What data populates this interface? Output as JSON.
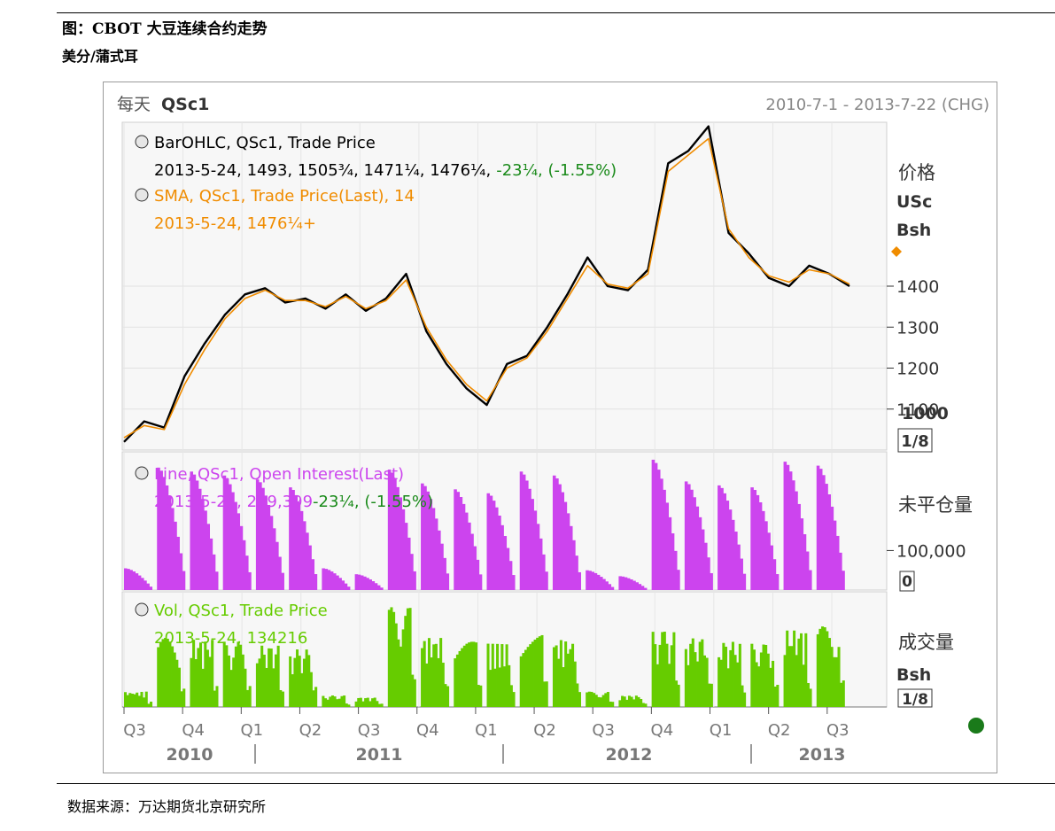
{
  "document": {
    "title": "图：CBOT 大豆连续合约走势",
    "unit": "美分/蒲式耳",
    "source": "数据来源：万达期货北京研究所"
  },
  "chart_data": {
    "type": "line",
    "header": {
      "period": "每天",
      "symbol": "QSc1",
      "date_range": "2010-7-1 - 2013-7-22 (CHG)"
    },
    "x_quarters": [
      "Q3",
      "Q4",
      "Q1",
      "Q2",
      "Q3",
      "Q4",
      "Q1",
      "Q2",
      "Q3",
      "Q4",
      "Q1",
      "Q2",
      "Q3"
    ],
    "x_years": [
      "2010",
      "2011",
      "2012",
      "2013"
    ],
    "status_dot_color": "#1a7a1a",
    "panels": [
      {
        "name": "price",
        "legend": [
          {
            "label": "BarOHLC, QSc1, Trade Price",
            "values": "2013-5-24, 1493, 1505³⁄₄, 1471¹⁄₄, 1476¹⁄₄,",
            "change": "-23¹⁄₄, (-1.55%)",
            "color": "#000000",
            "change_color": "#1a8a1a"
          },
          {
            "label": "SMA, QSc1, Trade Price(Last),  14",
            "values": "2013-5-24, 1476¹⁄₄+",
            "color": "#f08c00"
          }
        ],
        "axis_title": [
          "价格",
          "USc",
          "Bsh"
        ],
        "y_ticks": [
          "1400",
          "1300",
          "1200",
          "1100"
        ],
        "y_bottom_label": "1000",
        "scale_box": "1/8",
        "ylim": [
          1000,
          1800
        ],
        "marker_color": "#f08c00",
        "series": [
          {
            "name": "QSc1",
            "color": "#000000",
            "x": [
              0,
              1,
              2,
              3,
              4,
              5,
              6,
              7,
              8,
              9,
              10,
              11,
              12,
              13,
              14,
              15,
              16,
              17,
              18,
              19,
              20,
              21,
              22,
              23,
              24,
              25,
              26,
              27,
              28,
              29,
              30,
              31,
              32,
              33,
              34,
              35,
              36
            ],
            "values": [
              1020,
              1070,
              1055,
              1180,
              1260,
              1330,
              1380,
              1395,
              1360,
              1370,
              1345,
              1380,
              1340,
              1370,
              1430,
              1290,
              1210,
              1150,
              1110,
              1210,
              1230,
              1300,
              1380,
              1470,
              1400,
              1390,
              1440,
              1700,
              1730,
              1790,
              1530,
              1480,
              1420,
              1400,
              1450,
              1430,
              1400
            ]
          },
          {
            "name": "SMA 14",
            "color": "#f08c00",
            "x": [
              0,
              1,
              2,
              3,
              4,
              5,
              6,
              7,
              8,
              9,
              10,
              11,
              12,
              13,
              14,
              15,
              16,
              17,
              18,
              19,
              20,
              21,
              22,
              23,
              24,
              25,
              26,
              27,
              28,
              29,
              30,
              31,
              32,
              33,
              34,
              35,
              36
            ],
            "values": [
              1030,
              1060,
              1050,
              1160,
              1245,
              1320,
              1370,
              1390,
              1365,
              1365,
              1350,
              1375,
              1345,
              1365,
              1415,
              1300,
              1220,
              1160,
              1120,
              1200,
              1225,
              1290,
              1370,
              1450,
              1405,
              1395,
              1430,
              1680,
              1720,
              1760,
              1540,
              1470,
              1425,
              1410,
              1440,
              1430,
              1405
            ]
          }
        ]
      },
      {
        "name": "open-interest",
        "legend": [
          {
            "label": "Line, QSc1, Open Interest(Last)",
            "values": "2013-5-24, 299,399",
            "change": "-23¹⁄₄, (-1.55%)",
            "color": "#cc44ee",
            "change_color": "#1a8a1a"
          }
        ],
        "axis_title": [
          "未平仓量"
        ],
        "y_ticks": [
          "100,000"
        ],
        "scale_box": "0",
        "ylim": [
          0,
          350000
        ],
        "fill_color": "#cc44ee",
        "contract_peaks": [
          55000,
          310000,
          300000,
          290000,
          280000,
          260000,
          55000,
          40000,
          305000,
          270000,
          255000,
          245000,
          300000,
          290000,
          50000,
          35000,
          330000,
          275000,
          265000,
          260000,
          325000,
          315000
        ],
        "values": []
      },
      {
        "name": "volume",
        "legend": [
          {
            "label": "Vol, QSc1, Trade Price",
            "values": "2013-5-24, 134216",
            "color": "#66cc00"
          }
        ],
        "axis_title": [
          "成交量",
          "Bsh"
        ],
        "scale_box": "1/8",
        "ylim": [
          0,
          300000
        ],
        "fill_color": "#66cc00",
        "contract_peaks": [
          40000,
          180000,
          175000,
          170000,
          160000,
          150000,
          30000,
          25000,
          260000,
          180000,
          170000,
          165000,
          190000,
          175000,
          40000,
          30000,
          200000,
          180000,
          170000,
          165000,
          200000,
          210000
        ],
        "values": []
      }
    ]
  }
}
